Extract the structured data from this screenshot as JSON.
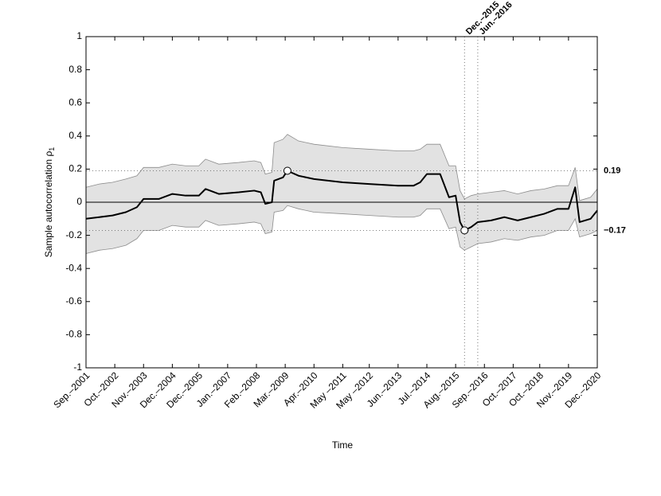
{
  "chart_data": {
    "type": "line",
    "xlabel": "Time",
    "ylabel": [
      "Sample autocorrelation ρ",
      "1"
    ],
    "x": [
      "2001-09",
      "2002-03",
      "2002-09",
      "2003-03",
      "2003-08",
      "2003-11",
      "2004-06",
      "2004-12",
      "2005-06",
      "2005-12",
      "2006-03",
      "2006-09",
      "2007-06",
      "2008-01",
      "2008-04",
      "2008-06",
      "2008-09",
      "2008-10",
      "2009-02",
      "2009-04",
      "2009-09",
      "2010-04",
      "2011-05",
      "2012-05",
      "2013-06",
      "2014-01",
      "2014-04",
      "2014-07",
      "2015-01",
      "2015-05",
      "2015-08",
      "2015-10",
      "2015-12",
      "2016-03",
      "2016-06",
      "2016-12",
      "2017-06",
      "2017-12",
      "2018-06",
      "2018-12",
      "2019-06",
      "2019-11",
      "2020-02",
      "2020-04",
      "2020-09",
      "2020-12"
    ],
    "line": {
      "color": "#000000",
      "values": [
        -0.1,
        -0.09,
        -0.08,
        -0.06,
        -0.03,
        0.02,
        0.02,
        0.05,
        0.04,
        0.04,
        0.08,
        0.05,
        0.06,
        0.07,
        0.06,
        -0.01,
        0.0,
        0.13,
        0.15,
        0.19,
        0.16,
        0.14,
        0.12,
        0.11,
        0.1,
        0.1,
        0.12,
        0.17,
        0.17,
        0.03,
        0.04,
        -0.12,
        -0.17,
        -0.15,
        -0.12,
        -0.11,
        -0.09,
        -0.11,
        -0.09,
        -0.07,
        -0.04,
        -0.04,
        0.09,
        -0.12,
        -0.1,
        -0.05
      ]
    },
    "band": {
      "color": "#e2e2e2",
      "edge_color": "#8c8c8c",
      "upper": [
        0.09,
        0.11,
        0.12,
        0.14,
        0.16,
        0.21,
        0.21,
        0.23,
        0.22,
        0.22,
        0.26,
        0.23,
        0.24,
        0.25,
        0.24,
        0.17,
        0.18,
        0.36,
        0.38,
        0.41,
        0.37,
        0.35,
        0.33,
        0.32,
        0.31,
        0.31,
        0.32,
        0.35,
        0.35,
        0.22,
        0.22,
        0.07,
        0.02,
        0.04,
        0.05,
        0.06,
        0.07,
        0.05,
        0.07,
        0.08,
        0.1,
        0.1,
        0.21,
        0.01,
        0.03,
        0.08
      ],
      "lower": [
        -0.31,
        -0.29,
        -0.28,
        -0.26,
        -0.22,
        -0.17,
        -0.17,
        -0.14,
        -0.15,
        -0.15,
        -0.11,
        -0.14,
        -0.13,
        -0.12,
        -0.13,
        -0.19,
        -0.18,
        -0.06,
        -0.05,
        -0.02,
        -0.04,
        -0.06,
        -0.07,
        -0.08,
        -0.09,
        -0.09,
        -0.08,
        -0.04,
        -0.04,
        -0.16,
        -0.15,
        -0.27,
        -0.29,
        -0.27,
        -0.25,
        -0.24,
        -0.22,
        -0.23,
        -0.21,
        -0.2,
        -0.17,
        -0.17,
        -0.1,
        -0.21,
        -0.19,
        -0.17
      ]
    },
    "highlights": [
      {
        "x": "2009-04",
        "value": 0.19
      },
      {
        "x": "2015-12",
        "value": -0.17
      }
    ],
    "hlines": [
      {
        "value": 0.19,
        "label": "0.19"
      },
      {
        "value": -0.17,
        "label": "−0.17"
      }
    ],
    "vlines": [
      {
        "x": "2015-12",
        "label": "Dec.–2015"
      },
      {
        "x": "2016-06",
        "label": "Jun.–2016"
      }
    ],
    "zero_line": true,
    "xlim": [
      "2001-09",
      "2020-12"
    ],
    "xticks": [
      {
        "value": "2001-09",
        "label": "Sep.–2001"
      },
      {
        "value": "2002-10",
        "label": "Oct.–2002"
      },
      {
        "value": "2003-11",
        "label": "Nov.–2003"
      },
      {
        "value": "2004-12",
        "label": "Dec.–2004"
      },
      {
        "value": "2005-12",
        "label": "Dec.–2005"
      },
      {
        "value": "2007-01",
        "label": "Jan.–2007"
      },
      {
        "value": "2008-02",
        "label": "Feb.–2008"
      },
      {
        "value": "2009-03",
        "label": "Mar.–2009"
      },
      {
        "value": "2010-04",
        "label": "Apr.–2010"
      },
      {
        "value": "2011-05",
        "label": "May –2011"
      },
      {
        "value": "2012-05",
        "label": "May –2012"
      },
      {
        "value": "2013-06",
        "label": "Jun.–2013"
      },
      {
        "value": "2014-07",
        "label": "Jul.–2014"
      },
      {
        "value": "2015-08",
        "label": "Aug.–2015"
      },
      {
        "value": "2016-09",
        "label": "Sep.–2016"
      },
      {
        "value": "2017-10",
        "label": "Oct.–2017"
      },
      {
        "value": "2018-10",
        "label": "Oct.–2018"
      },
      {
        "value": "2019-11",
        "label": "Nov.–2019"
      },
      {
        "value": "2020-12",
        "label": "Dec.–2020"
      }
    ],
    "ylim": [
      -1,
      1
    ],
    "yticks": [
      -1,
      -0.8,
      -0.6,
      -0.4,
      -0.2,
      0,
      0.2,
      0.4,
      0.6,
      0.8,
      1
    ]
  }
}
